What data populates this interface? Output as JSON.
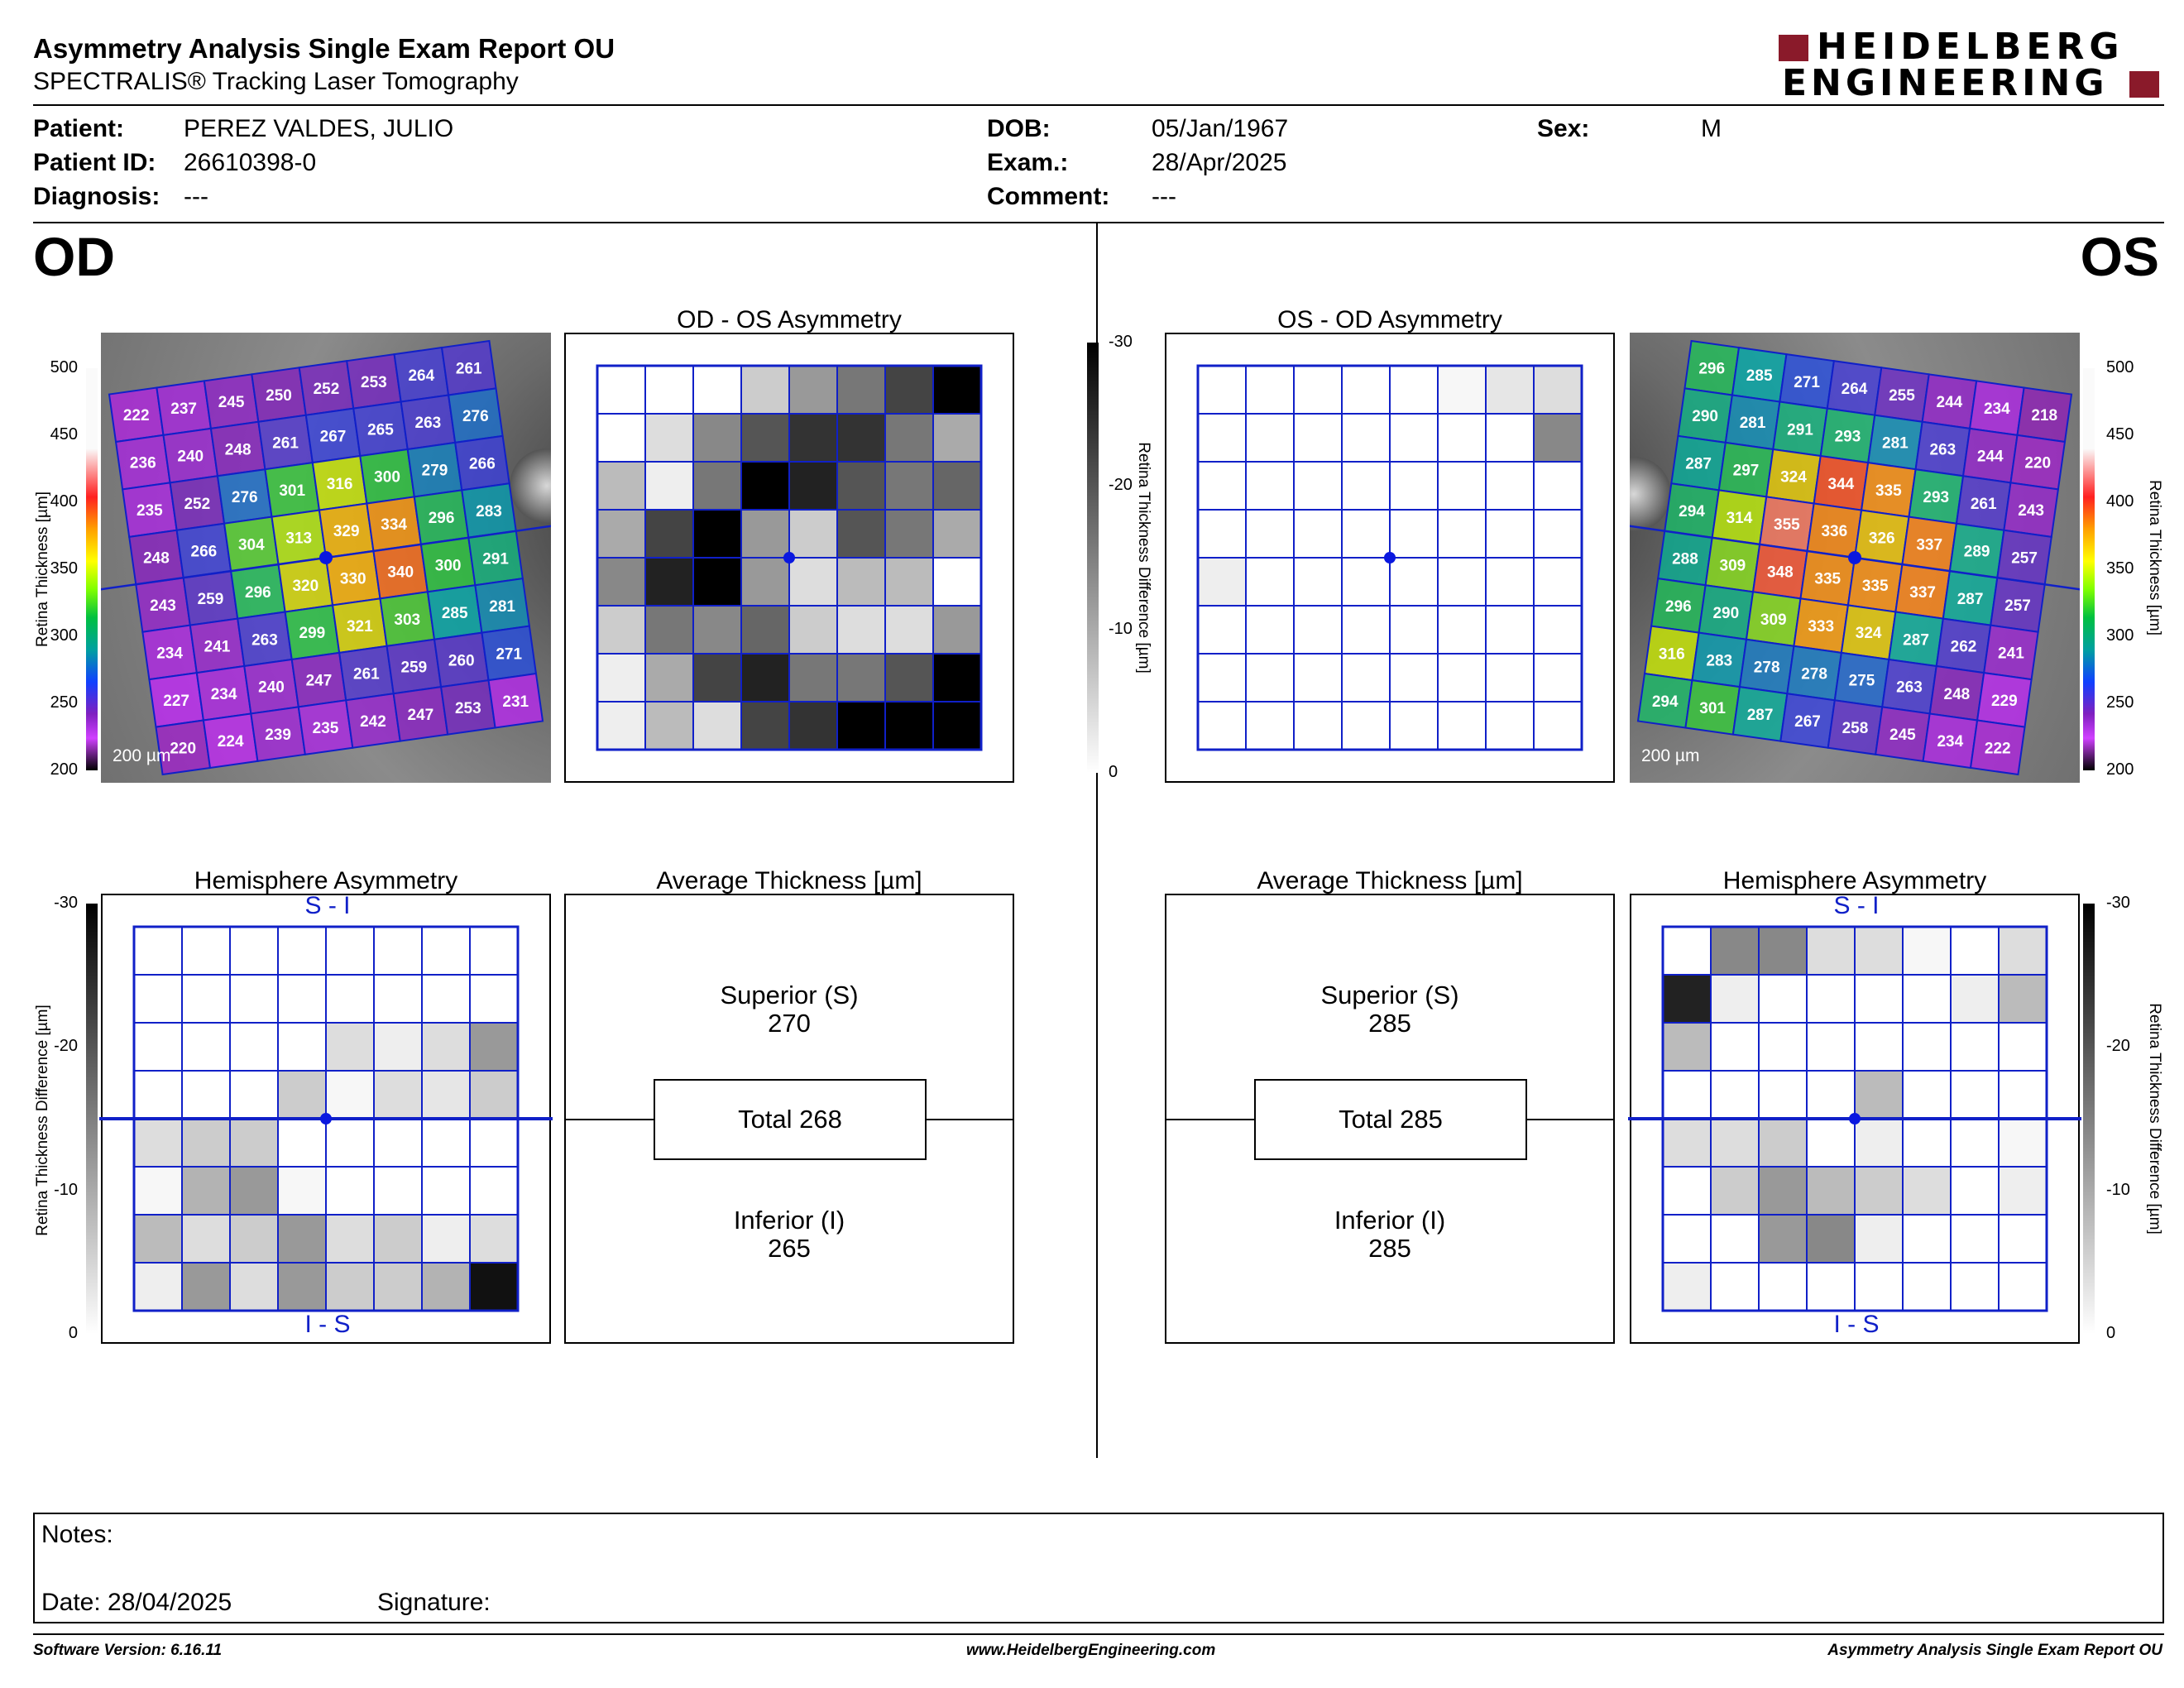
{
  "header": {
    "title": "Asymmetry Analysis Single Exam Report OU",
    "subtitle": "SPECTRALIS® Tracking Laser Tomography",
    "logo_line1": "HEIDELBERG",
    "logo_line2": "ENGINEERING"
  },
  "patient": {
    "name_label": "Patient:",
    "name": "PEREZ VALDES, JULIO",
    "id_label": "Patient ID:",
    "id": "26610398-0",
    "diagnosis_label": "Diagnosis:",
    "diagnosis": "---",
    "dob_label": "DOB:",
    "dob": "05/Jan/1967",
    "exam_label": "Exam.:",
    "exam": "28/Apr/2025",
    "comment_label": "Comment:",
    "comment": "---",
    "sex_label": "Sex:",
    "sex": "M"
  },
  "od": {
    "eye_label": "OD",
    "asym_title": "OD - OS Asymmetry",
    "hemi_title": "Hemisphere Asymmetry",
    "hemi_top": "S - I",
    "hemi_bottom": "I - S",
    "avg_title": "Average Thickness [µm]",
    "superior_label": "Superior (S)",
    "superior_value": "270",
    "total_label": "Total 268",
    "inferior_label": "Inferior (I)",
    "inferior_value": "265",
    "scale_label": "200 µm",
    "thickness_grid": [
      [
        222,
        237,
        245,
        250,
        252,
        253,
        264,
        261
      ],
      [
        236,
        240,
        248,
        261,
        267,
        265,
        263,
        276
      ],
      [
        235,
        252,
        276,
        301,
        316,
        300,
        279,
        266
      ],
      [
        248,
        266,
        304,
        313,
        329,
        334,
        296,
        283
      ],
      [
        243,
        259,
        296,
        320,
        330,
        340,
        300,
        291
      ],
      [
        234,
        241,
        263,
        299,
        321,
        303,
        285,
        281
      ],
      [
        227,
        234,
        240,
        247,
        261,
        259,
        260,
        271
      ],
      [
        220,
        224,
        239,
        235,
        242,
        247,
        253,
        231
      ]
    ],
    "asym_grid": [
      [
        0,
        0,
        0,
        6,
        12,
        16,
        22,
        30
      ],
      [
        0,
        4,
        14,
        20,
        24,
        24,
        16,
        10
      ],
      [
        8,
        2,
        16,
        30,
        26,
        20,
        16,
        18
      ],
      [
        10,
        22,
        30,
        12,
        6,
        20,
        16,
        10
      ],
      [
        14,
        26,
        30,
        12,
        4,
        8,
        8,
        0
      ],
      [
        6,
        16,
        14,
        18,
        6,
        4,
        4,
        12
      ],
      [
        2,
        10,
        22,
        26,
        16,
        16,
        20,
        30
      ],
      [
        2,
        8,
        4,
        22,
        24,
        30,
        30,
        30
      ]
    ],
    "hemi_grid": [
      [
        0,
        0,
        0,
        0,
        0,
        0,
        0,
        0
      ],
      [
        0,
        0,
        0,
        0,
        0,
        0,
        0,
        0
      ],
      [
        0,
        0,
        0,
        0,
        4,
        2,
        4,
        12
      ],
      [
        0,
        0,
        0,
        6,
        1,
        4,
        3,
        6
      ],
      [
        4,
        6,
        6,
        0,
        0,
        0,
        0,
        0
      ],
      [
        1,
        9,
        12,
        1,
        0,
        0,
        0,
        0
      ],
      [
        8,
        4,
        6,
        12,
        4,
        6,
        2,
        4
      ],
      [
        2,
        12,
        4,
        12,
        6,
        6,
        9,
        28
      ]
    ]
  },
  "os": {
    "eye_label": "OS",
    "asym_title": "OS - OD Asymmetry",
    "hemi_title": "Hemisphere Asymmetry",
    "hemi_top": "S - I",
    "hemi_bottom": "I - S",
    "avg_title": "Average Thickness [µm]",
    "superior_label": "Superior (S)",
    "superior_value": "285",
    "total_label": "Total 285",
    "inferior_label": "Inferior (I)",
    "inferior_value": "285",
    "scale_label": "200 µm",
    "thickness_grid": [
      [
        296,
        285,
        271,
        264,
        255,
        244,
        234,
        218
      ],
      [
        290,
        281,
        291,
        293,
        281,
        263,
        244,
        220
      ],
      [
        287,
        297,
        324,
        344,
        335,
        293,
        261,
        243
      ],
      [
        294,
        314,
        355,
        336,
        326,
        337,
        289,
        257
      ],
      [
        288,
        309,
        348,
        335,
        335,
        337,
        287,
        257
      ],
      [
        296,
        290,
        309,
        333,
        324,
        287,
        262,
        241
      ],
      [
        316,
        283,
        278,
        278,
        275,
        263,
        248,
        229
      ],
      [
        294,
        301,
        287,
        267,
        258,
        245,
        234,
        222
      ]
    ],
    "asym_grid": [
      [
        0,
        0,
        0,
        0,
        0,
        1,
        3,
        4
      ],
      [
        0,
        0,
        0,
        0,
        0,
        0,
        0,
        14
      ],
      [
        0,
        0,
        0,
        0,
        0,
        0,
        0,
        0
      ],
      [
        0,
        0,
        0,
        0,
        0,
        0,
        0,
        0
      ],
      [
        2,
        0,
        0,
        0,
        0,
        0,
        0,
        0
      ],
      [
        0,
        0,
        0,
        0,
        0,
        0,
        0,
        0
      ],
      [
        0,
        0,
        0,
        0,
        0,
        0,
        0,
        0
      ],
      [
        0,
        0,
        0,
        0,
        0,
        0,
        0,
        0
      ]
    ],
    "hemi_grid": [
      [
        0,
        14,
        14,
        4,
        4,
        1,
        0,
        4
      ],
      [
        26,
        2,
        0,
        0,
        0,
        0,
        2,
        8
      ],
      [
        8,
        0,
        0,
        0,
        0,
        0,
        0,
        0
      ],
      [
        0,
        0,
        0,
        0,
        8,
        0,
        0,
        0
      ],
      [
        4,
        4,
        6,
        0,
        2,
        0,
        0,
        1
      ],
      [
        0,
        6,
        12,
        8,
        6,
        4,
        0,
        2
      ],
      [
        0,
        0,
        12,
        14,
        2,
        0,
        0,
        0
      ],
      [
        2,
        0,
        0,
        0,
        0,
        0,
        0,
        0
      ]
    ]
  },
  "scales": {
    "thickness_ticks": [
      "500",
      "450",
      "400",
      "350",
      "300",
      "250",
      "200"
    ],
    "thickness_label": "Retina Thickness [µm]",
    "diff_ticks": [
      "-30",
      "-20",
      "-10",
      "0"
    ],
    "diff_label": "Retina Thickness Difference [µm]"
  },
  "notes": {
    "notes_label": "Notes:",
    "date_label": "Date: 28/04/2025",
    "signature_label": "Signature:"
  },
  "footer": {
    "software": "Software Version: 6.16.11",
    "website": "www.HeidelbergEngineering.com",
    "report": "Asymmetry Analysis Single Exam Report OU"
  },
  "colors": {
    "grid_blue": "#1020c8",
    "logo_red": "#8a1a2a",
    "fovea_blue": "#0a18e0"
  }
}
